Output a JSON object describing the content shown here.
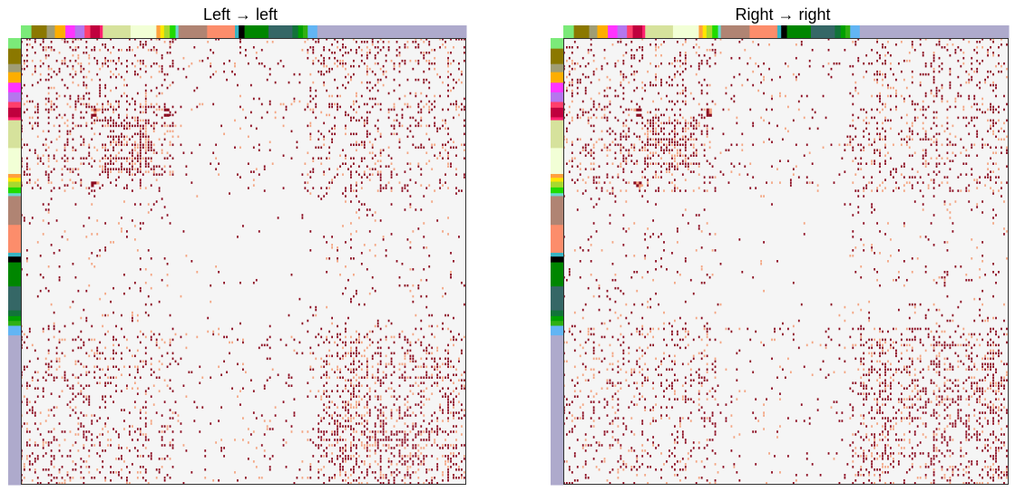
{
  "panels": [
    {
      "title": "Left → left"
    },
    {
      "title": "Right → right"
    }
  ],
  "chart_data": {
    "type": "heatmap",
    "charts": [
      {
        "title": "Left → left"
      },
      {
        "title": "Right → right"
      }
    ],
    "xlabel": "",
    "ylabel": "",
    "colorscale": {
      "low": "#f5f5f5",
      "mid": "#f4a582",
      "high": "#8b0a1f"
    },
    "groups": [
      {
        "color": "#7bea79",
        "fraction": 0.022
      },
      {
        "color": "#8b7800",
        "fraction": 0.032
      },
      {
        "color": "#a09d74",
        "fraction": 0.017
      },
      {
        "color": "#fdae00",
        "fraction": 0.022
      },
      {
        "color": "#ff34ff",
        "fraction": 0.02
      },
      {
        "color": "#b576ee",
        "fraction": 0.02
      },
      {
        "color": "#ff3f6b",
        "fraction": 0.012
      },
      {
        "color": "#c0003e",
        "fraction": 0.02
      },
      {
        "color": "#ff2070",
        "fraction": 0.006
      },
      {
        "color": "#d6e29c",
        "fraction": 0.058
      },
      {
        "color": "#f2ffd6",
        "fraction": 0.054
      },
      {
        "color": "#ffa03e",
        "fraction": 0.008
      },
      {
        "color": "#ffe600",
        "fraction": 0.008
      },
      {
        "color": "#a7d92f",
        "fraction": 0.012
      },
      {
        "color": "#1fdb00",
        "fraction": 0.012
      },
      {
        "color": "#6dd7d0",
        "fraction": 0.006
      },
      {
        "color": "#b08473",
        "fraction": 0.06
      },
      {
        "color": "#fc8d6b",
        "fraction": 0.058
      },
      {
        "color": "#37b4c2",
        "fraction": 0.008
      },
      {
        "color": "#000000",
        "fraction": 0.012
      },
      {
        "color": "#008600",
        "fraction": 0.05
      },
      {
        "color": "#356766",
        "fraction": 0.05
      },
      {
        "color": "#12733a",
        "fraction": 0.012
      },
      {
        "color": "#00a000",
        "fraction": 0.01
      },
      {
        "color": "#30b012",
        "fraction": 0.01
      },
      {
        "color": "#62b5f4",
        "fraction": 0.02
      },
      {
        "color": "#aeaacc",
        "fraction": 0.311
      }
    ]
  }
}
